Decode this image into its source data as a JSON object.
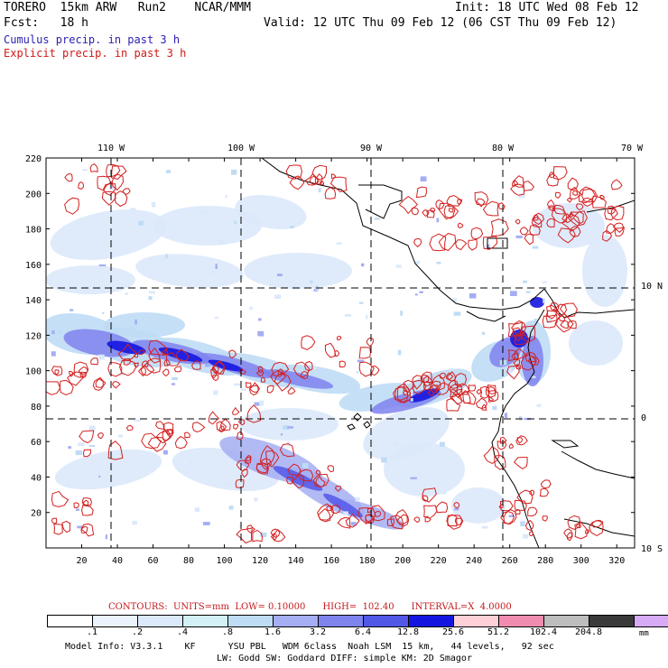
{
  "header": {
    "model_line": "TORERO  15km ARW   Run2    NCAR/MMM",
    "init": "Init: 18 UTC Wed 08 Feb 12",
    "fcst_line": "Fcst:   18 h",
    "valid": "Valid: 12 UTC Thu 09 Feb 12 (06 CST Thu 09 Feb 12)",
    "field1": "Cumulus precip. in past 3 h",
    "field2": "Explicit precip. in past 3 h"
  },
  "map": {
    "lon_labels": [
      "110 W",
      "100 W",
      "90 W",
      "80 W",
      "70 W"
    ],
    "lat_labels": [
      "10 N",
      "0",
      "10 S"
    ],
    "x_ticks": [
      "20",
      "40",
      "60",
      "80",
      "100",
      "120",
      "140",
      "160",
      "180",
      "200",
      "220",
      "240",
      "260",
      "280",
      "300",
      "320"
    ],
    "y_ticks": [
      "20",
      "40",
      "60",
      "80",
      "100",
      "120",
      "140",
      "160",
      "180",
      "200",
      "220"
    ],
    "colors": {
      "land": "#000000",
      "grid": "#000000",
      "explicit": "#d42020"
    }
  },
  "contour_info": "CONTOURS:  UNITS=mm  LOW= 0.10000      HIGH=  102.40      INTERVAL=X  4.0000",
  "legend": {
    "labels": [
      ".1",
      ".2",
      ".4",
      ".8",
      "1.6",
      "3.2",
      "6.4",
      "12.8",
      "25.6",
      "51.2",
      "102.4",
      "204.8"
    ],
    "colors": [
      "#ffffff",
      "#eaf2fc",
      "#dbe9fb",
      "#d2f0f5",
      "#bfdcf5",
      "#a5aef2",
      "#7f83ee",
      "#5257e8",
      "#1515e0",
      "#ffd0d5",
      "#f08cb0",
      "#bdbdbd",
      "#3a3a3a",
      "#d7aaf5"
    ],
    "units": "mm"
  },
  "footer": {
    "line1": "Model Info: V3.3.1    KF      YSU PBL   WDM 6class  Noah LSM  15 km,   44 levels,   92 sec",
    "line2": "LW: Godd SW: Goddard DIFF: simple KM: 2D Smagor"
  }
}
